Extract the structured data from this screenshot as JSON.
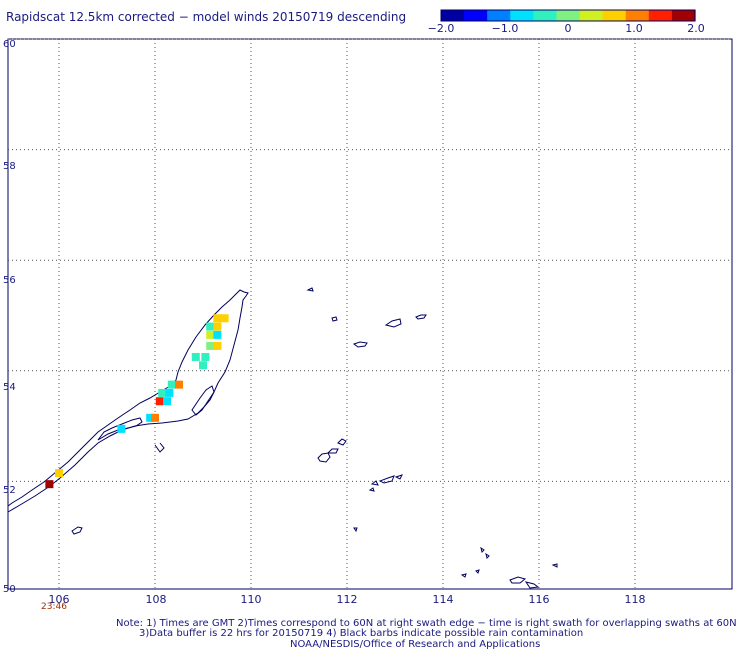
{
  "title": "Rapidscat 12.5km corrected − model winds 20150719 descending",
  "colorbar": {
    "labels": [
      "−2.0",
      "−1.0",
      "0",
      "1.0",
      "2.0"
    ],
    "values": [
      -2.0,
      -1.0,
      0,
      1.0,
      2.0
    ],
    "colors": [
      "#0000a0",
      "#0000ff",
      "#0080ff",
      "#00e0ff",
      "#30f0c0",
      "#80f080",
      "#d0f020",
      "#ffd000",
      "#ff8000",
      "#ff2000",
      "#a00000"
    ]
  },
  "axes": {
    "lon_ticks": [
      "106",
      "108",
      "110",
      "112",
      "114",
      "116",
      "118"
    ],
    "lat_ticks": [
      "60",
      "58",
      "56",
      "54",
      "52",
      "50"
    ],
    "lon_range": [
      105,
      120
    ],
    "lat_range": [
      50,
      60
    ],
    "grid": true
  },
  "time_label": "23:46",
  "notes": [
    "Note: 1) Times are GMT 2)Times correspond to 60N at right swath edge − time is right swath for overlapping swaths at 60N",
    "3)Data buffer is 22 hrs for 20150719 4) Black barbs indicate possible rain contamination",
    "NOAA/NESDIS/Office of Research and Applications"
  ],
  "colors": {
    "text": "#1a1a80",
    "coast": "#000060",
    "grid": "#555555",
    "time": "#a03000"
  },
  "chart_data": {
    "type": "heatmap",
    "variable": "wind speed difference (corrected − model)",
    "units": "m/s",
    "cells": [
      {
        "lon": 105.8,
        "lat": 51.95,
        "value": 2.0
      },
      {
        "lon": 106.0,
        "lat": 52.15,
        "value": 0.8
      },
      {
        "lon": 107.3,
        "lat": 52.95,
        "value": -0.8
      },
      {
        "lon": 107.9,
        "lat": 53.15,
        "value": -0.7
      },
      {
        "lon": 108.0,
        "lat": 53.15,
        "value": 1.1
      },
      {
        "lon": 108.1,
        "lat": 53.45,
        "value": 1.6
      },
      {
        "lon": 108.25,
        "lat": 53.45,
        "value": -0.7
      },
      {
        "lon": 108.15,
        "lat": 53.6,
        "value": -0.4
      },
      {
        "lon": 108.3,
        "lat": 53.6,
        "value": -0.7
      },
      {
        "lon": 108.35,
        "lat": 53.75,
        "value": -0.3
      },
      {
        "lon": 108.5,
        "lat": 53.75,
        "value": 1.2
      },
      {
        "lon": 108.85,
        "lat": 54.25,
        "value": -0.3
      },
      {
        "lon": 109.05,
        "lat": 54.25,
        "value": -0.3
      },
      {
        "lon": 109.0,
        "lat": 54.1,
        "value": -0.3
      },
      {
        "lon": 109.15,
        "lat": 54.45,
        "value": 0.1
      },
      {
        "lon": 109.3,
        "lat": 54.45,
        "value": 0.6
      },
      {
        "lon": 109.15,
        "lat": 54.65,
        "value": 0.5
      },
      {
        "lon": 109.3,
        "lat": 54.65,
        "value": -0.8
      },
      {
        "lon": 109.15,
        "lat": 54.8,
        "value": -0.3
      },
      {
        "lon": 109.3,
        "lat": 54.8,
        "value": 0.6
      },
      {
        "lon": 109.3,
        "lat": 54.95,
        "value": 0.7
      },
      {
        "lon": 109.45,
        "lat": 54.95,
        "value": 0.7
      }
    ]
  }
}
